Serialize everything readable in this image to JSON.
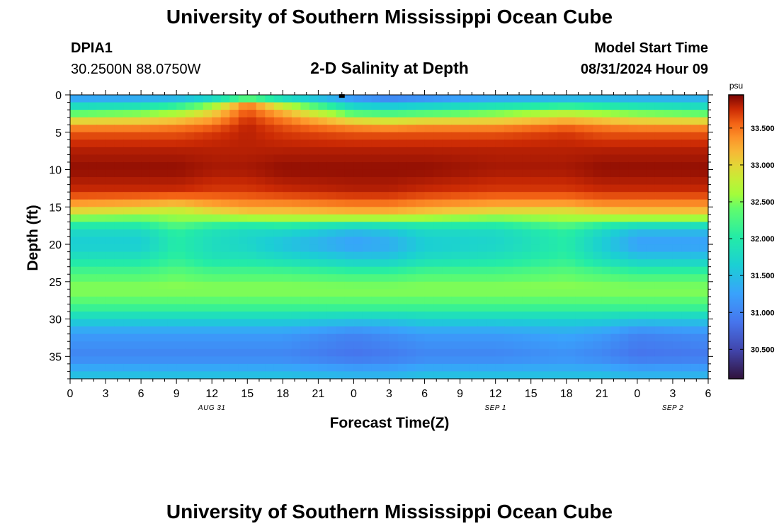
{
  "header": {
    "title": "University of Southern Mississippi Ocean Cube",
    "station_id": "DPIA1",
    "coordinates": "30.2500N  88.0750W",
    "subtitle": "2-D Salinity at Depth",
    "model_start_label": "Model Start Time",
    "model_start_value": "08/31/2024 Hour 09"
  },
  "footer": {
    "title": "University of Southern Mississippi Ocean Cube"
  },
  "chart_data": {
    "type": "heatmap",
    "title": "2-D Salinity at Depth",
    "xlabel": "Forecast Time(Z)",
    "ylabel": "Depth (ft)",
    "x_ticks": [
      "0",
      "3",
      "6",
      "9",
      "12",
      "15",
      "18",
      "21",
      "0",
      "3",
      "6",
      "9",
      "12",
      "15",
      "18",
      "21",
      "0",
      "3",
      "6"
    ],
    "x_range_hours": [
      0,
      54
    ],
    "date_labels": [
      {
        "label": "AUG 31",
        "hour": 12
      },
      {
        "label": "SEP 1",
        "hour": 36
      },
      {
        "label": "SEP 2",
        "hour": 51
      }
    ],
    "y_ticks": [
      0,
      5,
      10,
      15,
      20,
      25,
      30,
      35
    ],
    "y_range_ft": [
      0,
      38
    ],
    "colorbar": {
      "unit": "psu",
      "min": 30.1,
      "max": 33.95,
      "tick_values": [
        30.5,
        31.0,
        31.5,
        32.0,
        32.5,
        33.0,
        33.5
      ],
      "tick_labels": [
        "30.500",
        "31.000",
        "31.500",
        "32.000",
        "32.500",
        "33.000",
        "33.500"
      ]
    },
    "time_hours": [
      0,
      6,
      9,
      12,
      15,
      18,
      24,
      27,
      30,
      36,
      42,
      45,
      48,
      54
    ],
    "depth_ft": [
      0,
      1,
      2,
      3,
      4,
      5,
      7,
      10,
      13,
      15,
      16,
      17,
      18,
      20,
      22,
      24,
      26,
      28,
      29,
      30,
      32,
      35,
      37,
      38
    ],
    "salinity_psu": [
      [
        31.1,
        31.1,
        31.1,
        31.2,
        31.3,
        31.2,
        31.0,
        30.8,
        30.9,
        31.1,
        31.2,
        31.2,
        31.2,
        31.3
      ],
      [
        31.5,
        31.6,
        31.8,
        32.3,
        33.4,
        32.5,
        31.4,
        31.3,
        31.4,
        31.6,
        31.7,
        31.7,
        31.6,
        31.5
      ],
      [
        32.1,
        32.2,
        32.4,
        32.9,
        33.6,
        33.1,
        32.0,
        31.9,
        32.0,
        32.2,
        32.5,
        32.3,
        32.2,
        32.1
      ],
      [
        32.7,
        32.8,
        32.9,
        33.2,
        33.7,
        33.4,
        32.7,
        32.6,
        32.7,
        32.8,
        33.0,
        32.9,
        32.8,
        32.7
      ],
      [
        33.3,
        33.3,
        33.4,
        33.5,
        33.8,
        33.6,
        33.3,
        33.2,
        33.3,
        33.3,
        33.5,
        33.4,
        33.3,
        33.3
      ],
      [
        33.6,
        33.6,
        33.6,
        33.7,
        33.8,
        33.7,
        33.6,
        33.6,
        33.6,
        33.6,
        33.7,
        33.6,
        33.6,
        33.6
      ],
      [
        33.8,
        33.8,
        33.8,
        33.8,
        33.8,
        33.8,
        33.8,
        33.8,
        33.8,
        33.8,
        33.8,
        33.8,
        33.8,
        33.8
      ],
      [
        33.9,
        33.9,
        33.9,
        33.85,
        33.85,
        33.9,
        33.9,
        33.9,
        33.9,
        33.85,
        33.85,
        33.9,
        33.9,
        33.9
      ],
      [
        33.75,
        33.75,
        33.75,
        33.7,
        33.7,
        33.75,
        33.8,
        33.8,
        33.75,
        33.7,
        33.7,
        33.75,
        33.75,
        33.75
      ],
      [
        33.2,
        33.1,
        33.0,
        33.2,
        33.3,
        33.3,
        33.4,
        33.4,
        33.3,
        33.2,
        33.2,
        33.3,
        33.3,
        33.3
      ],
      [
        32.8,
        32.7,
        32.6,
        32.8,
        33.0,
        33.0,
        33.1,
        33.1,
        33.0,
        32.8,
        32.7,
        32.9,
        33.0,
        33.0
      ],
      [
        32.2,
        32.2,
        32.5,
        32.3,
        32.2,
        32.3,
        32.2,
        32.2,
        32.2,
        32.2,
        32.5,
        32.3,
        32.2,
        32.2
      ],
      [
        31.8,
        31.8,
        32.1,
        31.9,
        31.8,
        31.8,
        31.5,
        31.6,
        31.8,
        31.8,
        32.1,
        31.8,
        31.5,
        31.5
      ],
      [
        31.6,
        31.6,
        32.0,
        31.8,
        31.7,
        31.5,
        31.2,
        31.3,
        31.6,
        31.7,
        32.0,
        31.6,
        31.2,
        31.2
      ],
      [
        31.9,
        31.9,
        32.1,
        31.9,
        31.9,
        31.8,
        31.6,
        31.6,
        31.8,
        31.9,
        32.1,
        31.8,
        31.6,
        31.6
      ],
      [
        32.3,
        32.3,
        32.4,
        32.3,
        32.3,
        32.3,
        32.2,
        32.2,
        32.3,
        32.3,
        32.4,
        32.3,
        32.2,
        32.2
      ],
      [
        32.55,
        32.55,
        32.55,
        32.55,
        32.55,
        32.55,
        32.55,
        32.55,
        32.55,
        32.55,
        32.55,
        32.55,
        32.55,
        32.55
      ],
      [
        32.3,
        32.3,
        32.3,
        32.3,
        32.3,
        32.3,
        32.3,
        32.3,
        32.3,
        32.3,
        32.3,
        32.3,
        32.3,
        32.3
      ],
      [
        32.0,
        32.0,
        32.0,
        32.0,
        32.0,
        32.0,
        32.0,
        32.0,
        32.0,
        32.0,
        32.0,
        32.0,
        32.0,
        32.0
      ],
      [
        31.7,
        31.7,
        31.7,
        31.7,
        31.7,
        31.7,
        31.6,
        31.6,
        31.7,
        31.7,
        31.7,
        31.7,
        31.6,
        31.6
      ],
      [
        31.2,
        31.2,
        31.2,
        31.2,
        31.2,
        31.2,
        31.0,
        31.1,
        31.2,
        31.2,
        31.3,
        31.2,
        31.0,
        31.1
      ],
      [
        31.0,
        31.0,
        31.0,
        31.0,
        31.0,
        31.0,
        30.85,
        30.9,
        31.0,
        31.0,
        31.1,
        31.0,
        30.85,
        30.9
      ],
      [
        31.4,
        31.4,
        31.4,
        31.4,
        31.4,
        31.4,
        31.3,
        31.3,
        31.4,
        31.4,
        31.4,
        31.4,
        31.3,
        31.3
      ],
      [
        31.6,
        31.6,
        31.6,
        31.6,
        31.6,
        31.6,
        31.5,
        31.5,
        31.6,
        31.6,
        31.6,
        31.6,
        31.5,
        31.5
      ]
    ],
    "marker": {
      "hour": 23,
      "depth_ft": 0.2
    }
  }
}
